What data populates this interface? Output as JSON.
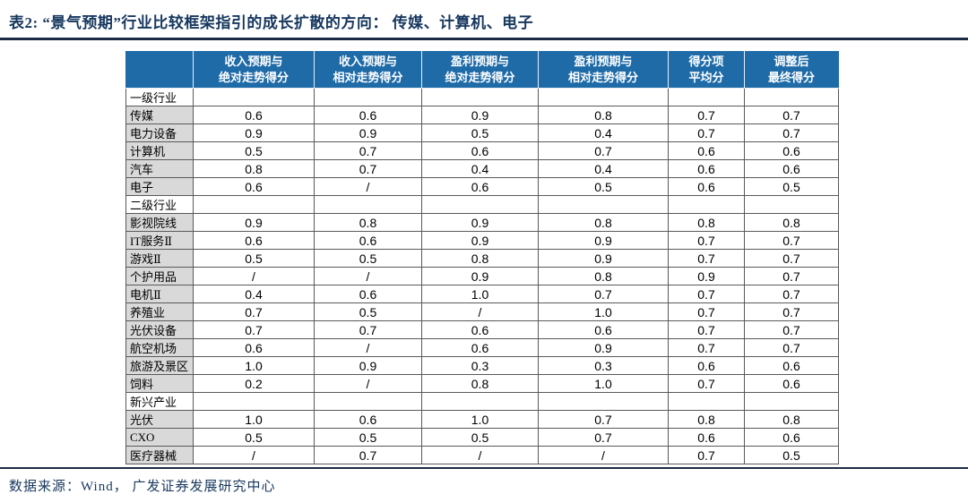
{
  "title": "表2:  “景气预期”行业比较框架指引的成长扩散的方向： 传媒、计算机、电子",
  "colors": {
    "header_bg": "#1e6ba8",
    "header_text": "#ffffff",
    "label_cell_bg": "#d9d9d9",
    "title_text": "#17375e",
    "rule": "#1b2b45",
    "grid_border": "#595959"
  },
  "table": {
    "corner_label": "",
    "columns": [
      "收入预期与\n绝对走势得分",
      "收入预期与\n相对走势得分",
      "盈利预期与\n绝对走势得分",
      "盈利预期与\n相对走势得分",
      "得分项\n平均分",
      "调整后\n最终得分"
    ],
    "rows": [
      {
        "type": "section",
        "label": "一级行业",
        "values": [
          "",
          "",
          "",
          "",
          "",
          ""
        ]
      },
      {
        "type": "data",
        "label": "传媒",
        "values": [
          "0.6",
          "0.6",
          "0.9",
          "0.8",
          "0.7",
          "0.7"
        ]
      },
      {
        "type": "data",
        "label": "电力设备",
        "values": [
          "0.9",
          "0.9",
          "0.5",
          "0.4",
          "0.7",
          "0.7"
        ]
      },
      {
        "type": "data",
        "label": "计算机",
        "values": [
          "0.5",
          "0.7",
          "0.6",
          "0.7",
          "0.6",
          "0.6"
        ]
      },
      {
        "type": "data",
        "label": "汽车",
        "values": [
          "0.8",
          "0.7",
          "0.4",
          "0.4",
          "0.6",
          "0.6"
        ]
      },
      {
        "type": "data",
        "label": "电子",
        "values": [
          "0.6",
          "/",
          "0.6",
          "0.5",
          "0.6",
          "0.5"
        ]
      },
      {
        "type": "section",
        "label": "二级行业",
        "values": [
          "",
          "",
          "",
          "",
          "",
          ""
        ]
      },
      {
        "type": "data",
        "label": "影视院线",
        "values": [
          "0.9",
          "0.8",
          "0.9",
          "0.8",
          "0.8",
          "0.8"
        ]
      },
      {
        "type": "data",
        "label": "IT服务Ⅱ",
        "values": [
          "0.6",
          "0.6",
          "0.9",
          "0.9",
          "0.7",
          "0.7"
        ]
      },
      {
        "type": "data",
        "label": "游戏Ⅱ",
        "values": [
          "0.5",
          "0.5",
          "0.8",
          "0.9",
          "0.7",
          "0.7"
        ]
      },
      {
        "type": "data",
        "label": "个护用品",
        "values": [
          "/",
          "/",
          "0.9",
          "0.8",
          "0.9",
          "0.7"
        ]
      },
      {
        "type": "data",
        "label": "电机Ⅱ",
        "values": [
          "0.4",
          "0.6",
          "1.0",
          "0.7",
          "0.7",
          "0.7"
        ]
      },
      {
        "type": "data",
        "label": "养殖业",
        "values": [
          "0.7",
          "0.5",
          "/",
          "1.0",
          "0.7",
          "0.7"
        ]
      },
      {
        "type": "data",
        "label": "光伏设备",
        "values": [
          "0.7",
          "0.7",
          "0.6",
          "0.6",
          "0.7",
          "0.7"
        ]
      },
      {
        "type": "data",
        "label": "航空机场",
        "values": [
          "0.6",
          "/",
          "0.6",
          "0.9",
          "0.7",
          "0.7"
        ]
      },
      {
        "type": "data",
        "label": "旅游及景区",
        "values": [
          "1.0",
          "0.9",
          "0.3",
          "0.3",
          "0.6",
          "0.6"
        ]
      },
      {
        "type": "data",
        "label": "饲料",
        "values": [
          "0.2",
          "/",
          "0.8",
          "1.0",
          "0.7",
          "0.6"
        ]
      },
      {
        "type": "section",
        "label": "新兴产业",
        "values": [
          "",
          "",
          "",
          "",
          "",
          ""
        ]
      },
      {
        "type": "data",
        "label": "光伏",
        "values": [
          "1.0",
          "0.6",
          "1.0",
          "0.7",
          "0.8",
          "0.8"
        ]
      },
      {
        "type": "data",
        "label": "CXO",
        "values": [
          "0.5",
          "0.5",
          "0.5",
          "0.7",
          "0.6",
          "0.6"
        ]
      },
      {
        "type": "data",
        "label": "医疗器械",
        "values": [
          "/",
          "0.7",
          "/",
          "/",
          "0.7",
          "0.5"
        ]
      }
    ]
  },
  "footer": {
    "source": "数据来源：Wind， 广发证券发展研究中心"
  }
}
